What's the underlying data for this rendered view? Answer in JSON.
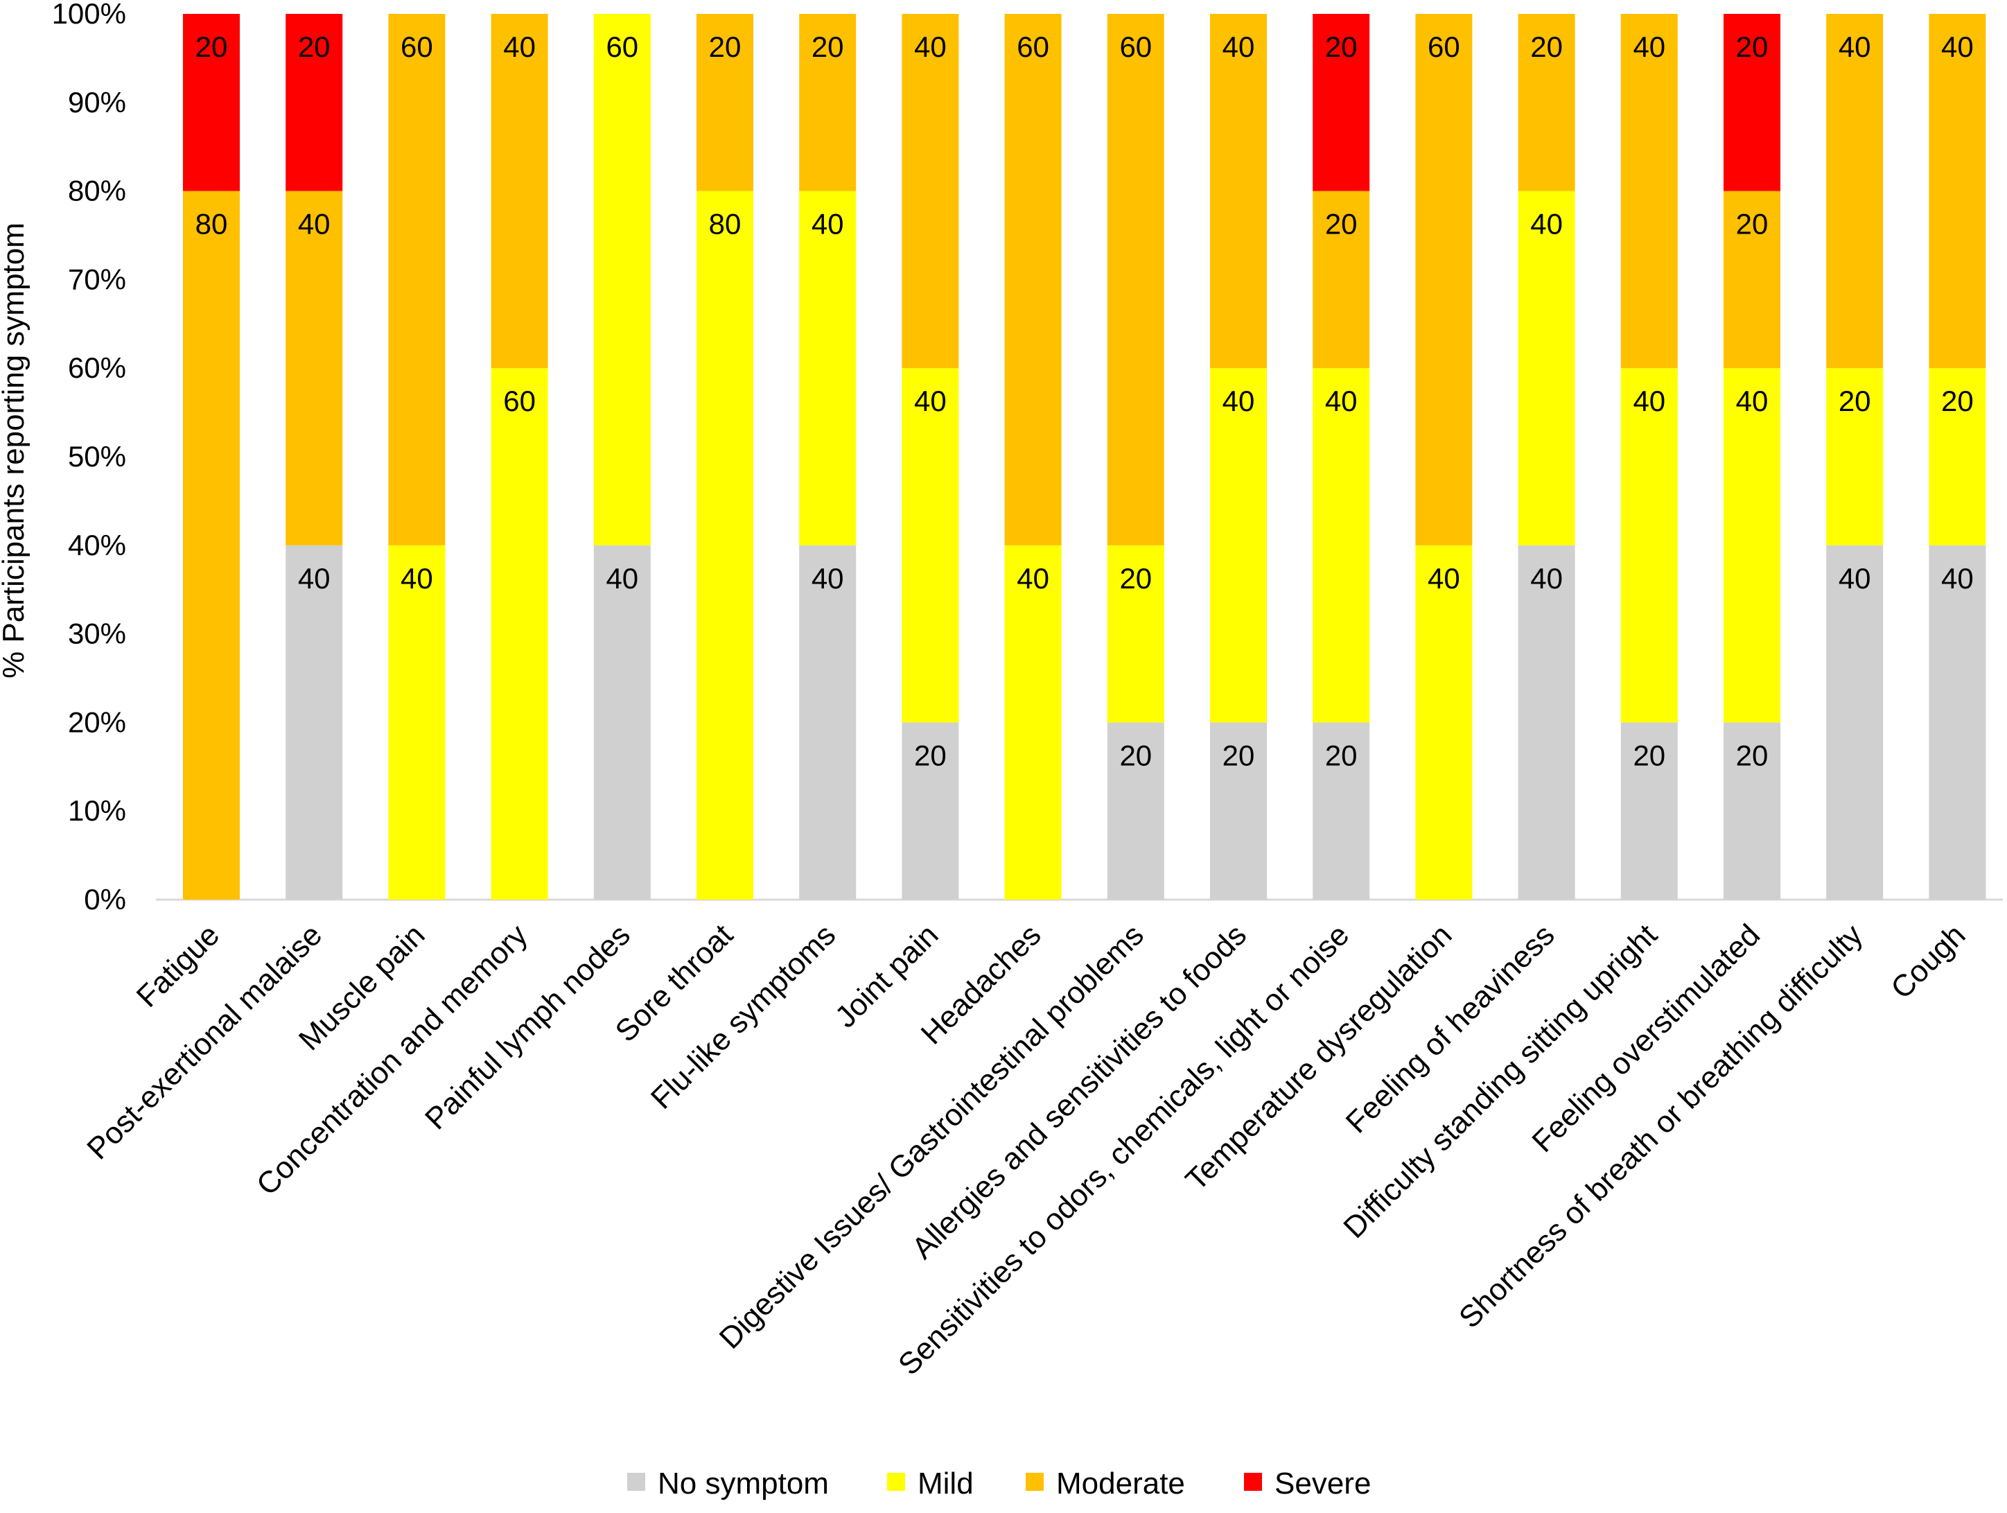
{
  "chart_data": {
    "type": "bar",
    "stacked": true,
    "title": "",
    "xlabel": "",
    "ylabel": "% Participants reporting symptom",
    "ylim": [
      0,
      100
    ],
    "yticks": [
      "0%",
      "10%",
      "20%",
      "30%",
      "40%",
      "50%",
      "60%",
      "70%",
      "80%",
      "90%",
      "100%"
    ],
    "grid": false,
    "legend_position": "bottom",
    "categories": [
      "Fatigue",
      "Post-exertional malaise",
      "Muscle pain",
      "Concentration and memory",
      "Painful lymph nodes",
      "Sore throat",
      "Flu-like symptoms",
      "Joint pain",
      "Headaches",
      "Digestive Issues/ Gastrointestinal problems",
      "Allergies and sensitivities to foods",
      "Sensitivities to odors, chemicals, light or noise",
      "Temperature dysregulation",
      "Feeling of heaviness",
      "Difficulty standing sitting upright",
      "Feeling overstimulated",
      "Shortness of breath or breathing difficulty",
      "Cough"
    ],
    "series": [
      {
        "name": "No symptom",
        "color": "#d0d0d0",
        "values": [
          0,
          40,
          0,
          0,
          40,
          0,
          40,
          20,
          0,
          20,
          20,
          20,
          0,
          40,
          20,
          20,
          40,
          40
        ]
      },
      {
        "name": "Mild",
        "color": "#ffff00",
        "values": [
          0,
          0,
          40,
          60,
          60,
          80,
          40,
          40,
          40,
          20,
          40,
          40,
          40,
          40,
          40,
          40,
          20,
          20
        ]
      },
      {
        "name": "Moderate",
        "color": "#ffc000",
        "values": [
          80,
          40,
          60,
          40,
          0,
          20,
          20,
          40,
          60,
          60,
          40,
          20,
          60,
          20,
          40,
          20,
          40,
          40
        ]
      },
      {
        "name": "Severe",
        "color": "#ff0000",
        "values": [
          20,
          20,
          0,
          0,
          0,
          0,
          0,
          0,
          0,
          0,
          0,
          20,
          0,
          0,
          0,
          20,
          0,
          0
        ]
      }
    ]
  }
}
